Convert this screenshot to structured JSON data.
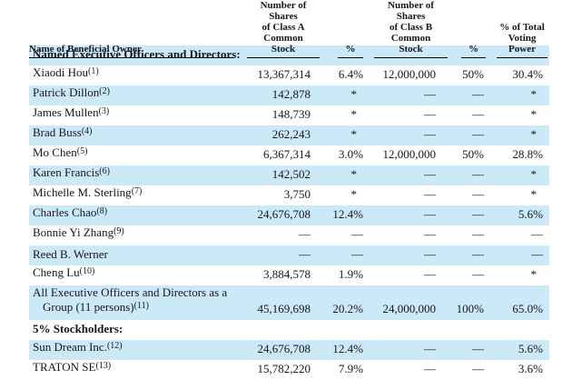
{
  "colors": {
    "shaded_row": "#cce9f8",
    "text": "#16161f",
    "rule": "#000000"
  },
  "table": {
    "headers": [
      "Name of Beneficial Owner",
      "Number of Shares\nof Class A Common\nStock",
      "%",
      "Number of Shares\nof Class B Common\nStock",
      "%",
      "% of Total\nVoting Power"
    ],
    "rows": [
      {
        "type": "section",
        "shaded": true,
        "name": "Named Executive Officers and Directors:",
        "footnote": "",
        "cells": []
      },
      {
        "type": "data",
        "shaded": false,
        "name": "Xiaodi Hou",
        "footnote": "(1)",
        "cells": [
          "13,367,314",
          "6.4%",
          "12,000,000",
          "50%",
          "30.4%"
        ]
      },
      {
        "type": "data",
        "shaded": true,
        "name": "Patrick Dillon",
        "footnote": "(2)",
        "cells": [
          "142,878",
          "*",
          "—",
          "—",
          "*"
        ]
      },
      {
        "type": "data",
        "shaded": false,
        "name": "James Mullen",
        "footnote": "(3)",
        "cells": [
          "148,739",
          "*",
          "—",
          "—",
          "*"
        ]
      },
      {
        "type": "data",
        "shaded": true,
        "name": "Brad Buss",
        "footnote": "(4)",
        "cells": [
          "262,243",
          "*",
          "—",
          "—",
          "*"
        ]
      },
      {
        "type": "data",
        "shaded": false,
        "name": "Mo Chen",
        "footnote": "(5)",
        "cells": [
          "6,367,314",
          "3.0%",
          "12,000,000",
          "50%",
          "28.8%"
        ]
      },
      {
        "type": "data",
        "shaded": true,
        "name": "Karen Francis",
        "footnote": "(6)",
        "cells": [
          "142,502",
          "*",
          "—",
          "—",
          "*"
        ]
      },
      {
        "type": "data",
        "shaded": false,
        "name": "Michelle M. Sterling",
        "footnote": "(7)",
        "cells": [
          "3,750",
          "*",
          "—",
          "—",
          "*"
        ]
      },
      {
        "type": "data",
        "shaded": true,
        "name": "Charles Chao",
        "footnote": "(8)",
        "cells": [
          "24,676,708",
          "12.4%",
          "—",
          "—",
          "5.6%"
        ]
      },
      {
        "type": "data",
        "shaded": false,
        "name": "Bonnie Yi Zhang",
        "footnote": "(9)",
        "cells": [
          "—",
          "—",
          "—",
          "—",
          "—"
        ]
      },
      {
        "type": "data",
        "shaded": true,
        "name": "Reed B. Werner",
        "footnote": "",
        "cells": [
          "—",
          "—",
          "—",
          "—",
          "—"
        ]
      },
      {
        "type": "data",
        "shaded": false,
        "name": "Cheng Lu",
        "footnote": "(10)",
        "cells": [
          "3,884,578",
          "1.9%",
          "—",
          "—",
          "*"
        ]
      },
      {
        "type": "data",
        "shaded": true,
        "name": "All Executive Officers and Directors as a\nGroup (11 persons)",
        "footnote": "(11)",
        "cells": [
          "45,169,698",
          "20.2%",
          "24,000,000",
          "100%",
          "65.0%"
        ]
      },
      {
        "type": "section",
        "shaded": false,
        "name": "5% Stockholders:",
        "footnote": "",
        "cells": []
      },
      {
        "type": "data",
        "shaded": true,
        "name": "Sun Dream Inc.",
        "footnote": "(12)",
        "cells": [
          "24,676,708",
          "12.4%",
          "—",
          "—",
          "5.6%"
        ]
      },
      {
        "type": "data",
        "shaded": false,
        "name": "TRATON SE",
        "footnote": "(13)",
        "cells": [
          "15,782,220",
          "7.9%",
          "—",
          "—",
          "3.6%"
        ]
      }
    ]
  }
}
